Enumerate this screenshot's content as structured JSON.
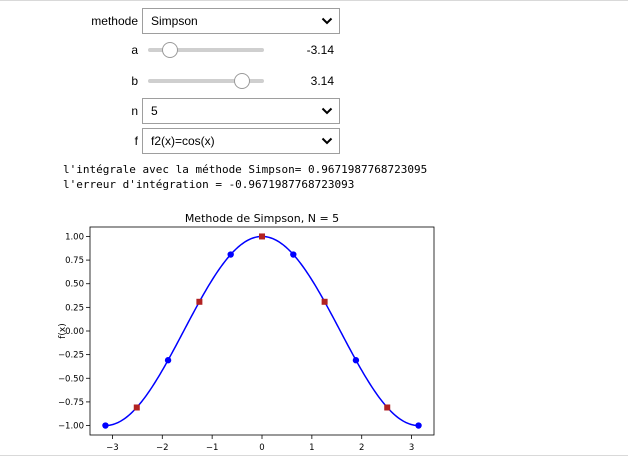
{
  "controls": {
    "methode": {
      "label": "methode",
      "value": "Simpson"
    },
    "a": {
      "label": "a",
      "value": -3.14,
      "display": "-3.14",
      "min": -5,
      "max": 5
    },
    "b": {
      "label": "b",
      "value": 3.14,
      "display": "3.14",
      "min": -5,
      "max": 5
    },
    "n": {
      "label": "n",
      "value": "5"
    },
    "f": {
      "label": "f",
      "value": "f2(x)=cos(x)"
    }
  },
  "output": {
    "line1": "l'intégrale avec la méthode Simpson= 0.9671987768723095",
    "line2": "l'erreur d'intégration = -0.9671987768723093"
  },
  "colors": {
    "curve": "#0000ff",
    "dots": "#0000ff",
    "squares": "#b22222",
    "axes": "#000000"
  },
  "chart_data": {
    "type": "line",
    "title": "Methode de Simpson, N = 5",
    "xlabel": "",
    "ylabel": "f(x)",
    "xlim": [
      -3.45,
      3.45
    ],
    "ylim": [
      -1.1,
      1.1
    ],
    "xticks": [
      -3,
      -2,
      -1,
      0,
      1,
      2,
      3
    ],
    "xtick_labels": [
      "−3",
      "−2",
      "−1",
      "0",
      "1",
      "2",
      "3"
    ],
    "yticks": [
      1.0,
      0.75,
      0.5,
      0.25,
      0.0,
      -0.25,
      -0.5,
      -0.75,
      -1.0
    ],
    "ytick_labels": [
      "1.00",
      "0.75",
      "0.50",
      "0.25",
      "0.00",
      "−0.25",
      "−0.50",
      "−0.75",
      "−1.00"
    ],
    "series": [
      {
        "name": "f(x)=cos(x)",
        "kind": "curve",
        "function": "cos",
        "domain": [
          -3.14,
          3.14
        ]
      },
      {
        "name": "nodes",
        "kind": "points",
        "x": [
          -3.14,
          -1.884,
          -0.628,
          0.628,
          1.884,
          3.14
        ],
        "y": [
          -1.0,
          -0.309,
          0.809,
          0.809,
          -0.309,
          -1.0
        ]
      },
      {
        "name": "midpoints",
        "kind": "squares",
        "x": [
          -2.512,
          -1.256,
          0.0,
          1.256,
          2.512
        ],
        "y": [
          -0.809,
          0.309,
          1.0,
          0.309,
          -0.809
        ]
      }
    ],
    "grid": false,
    "legend": "none"
  }
}
